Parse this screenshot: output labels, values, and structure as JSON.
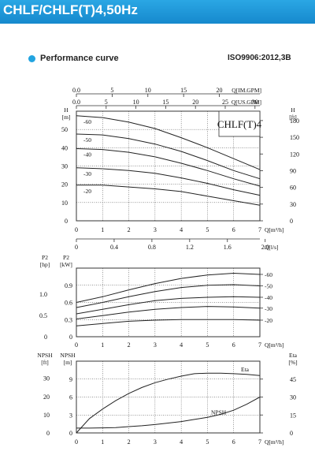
{
  "header": {
    "title": "CHLF/CHLF(T)4,50Hz"
  },
  "section": {
    "title": "Performance curve",
    "standard": "ISO9906:2012,3B"
  },
  "colors": {
    "banner": "#1a92d6",
    "accent_dot": "#22a4e0",
    "curve": "#222222",
    "grid": "#333333"
  },
  "chart_data": [
    {
      "type": "line",
      "id": "head",
      "model_label": "CHLF(T)4",
      "x_axis_bottom": {
        "label": "Q[m³/h]",
        "range": [
          0,
          7
        ],
        "ticks": [
          "0",
          "1",
          "2",
          "3",
          "4",
          "5",
          "6",
          "7"
        ]
      },
      "x_axis_top_1": {
        "label": "Q[IM.GPM]",
        "range": [
          0,
          25.67
        ],
        "ticks": [
          "0.0",
          "5",
          "10",
          "15",
          "20"
        ]
      },
      "x_axis_top_2": {
        "label": "Q[US.GPM]",
        "range": [
          0,
          30.82
        ],
        "ticks": [
          "0.0",
          "5",
          "10",
          "15",
          "20",
          "25",
          "30"
        ]
      },
      "y_axis_left": {
        "label": "H",
        "unit": "[m]",
        "range": [
          0,
          60
        ],
        "ticks": [
          "0",
          "10",
          "20",
          "30",
          "40",
          "50"
        ]
      },
      "y_axis_right": {
        "label": "H",
        "unit": "[ft]",
        "range": [
          0,
          196.85
        ],
        "ticks": [
          "0",
          "30",
          "60",
          "90",
          "120",
          "150",
          "180"
        ]
      },
      "x": [
        0,
        1,
        2,
        3,
        4,
        5,
        6,
        7
      ],
      "series": [
        {
          "name": "-60",
          "values": [
            57.5,
            56.5,
            54,
            50.5,
            45.5,
            40,
            34,
            28
          ]
        },
        {
          "name": "-50",
          "values": [
            47.5,
            47,
            45,
            42,
            38,
            33,
            27.5,
            23
          ]
        },
        {
          "name": "-40",
          "values": [
            39.5,
            39,
            37.5,
            35,
            31.5,
            27.5,
            23,
            19
          ]
        },
        {
          "name": "-30",
          "values": [
            29,
            28.5,
            27.5,
            26,
            23.5,
            20.5,
            17,
            14
          ]
        },
        {
          "name": "-20",
          "values": [
            19.5,
            19.5,
            18.5,
            17.5,
            16,
            13.5,
            11,
            8.5
          ]
        }
      ]
    },
    {
      "type": "line",
      "id": "power",
      "x_axis_top": {
        "label": "Q[l/s]",
        "range": [
          0,
          1.944
        ],
        "ticks": [
          "0",
          "0.4",
          "0.8",
          "1.2",
          "1.6",
          "2.0"
        ]
      },
      "x_axis_bottom": {
        "label": "Q[m³/h]",
        "range": [
          0,
          7
        ],
        "ticks": [
          "0",
          "1",
          "2",
          "3",
          "4",
          "5",
          "6",
          "7"
        ]
      },
      "y_axis_left_hp": {
        "label": "P2",
        "unit": "[hp]",
        "range": [
          0,
          1.61
        ],
        "ticks": [
          "0",
          "0.5",
          "1.0"
        ]
      },
      "y_axis_left_kw": {
        "label": "P2",
        "unit": "[kW]",
        "range": [
          0,
          1.2
        ],
        "ticks": [
          "0",
          "0.3",
          "0.6",
          "0.9"
        ]
      },
      "x": [
        0,
        1,
        2,
        3,
        4,
        5,
        6,
        7
      ],
      "series": [
        {
          "name": "-60",
          "values": [
            0.6,
            0.7,
            0.82,
            0.93,
            1.02,
            1.08,
            1.11,
            1.09
          ]
        },
        {
          "name": "-50",
          "values": [
            0.51,
            0.6,
            0.7,
            0.79,
            0.86,
            0.9,
            0.91,
            0.89
          ]
        },
        {
          "name": "-40",
          "values": [
            0.4,
            0.48,
            0.56,
            0.63,
            0.67,
            0.69,
            0.7,
            0.69
          ]
        },
        {
          "name": "-30",
          "values": [
            0.31,
            0.37,
            0.43,
            0.48,
            0.51,
            0.53,
            0.52,
            0.5
          ]
        },
        {
          "name": "-20",
          "values": [
            0.19,
            0.23,
            0.27,
            0.29,
            0.3,
            0.3,
            0.3,
            0.29
          ]
        }
      ]
    },
    {
      "type": "line",
      "id": "npsh_eta",
      "x_axis_bottom": {
        "label": "Q[m³/h]",
        "range": [
          0,
          7
        ],
        "ticks": [
          "0",
          "1",
          "2",
          "3",
          "4",
          "5",
          "6",
          "7"
        ]
      },
      "y_axis_left_ft": {
        "label": "NPSH",
        "unit": "[ft]",
        "range": [
          0,
          39.37
        ],
        "ticks": [
          "0",
          "10",
          "20",
          "30"
        ]
      },
      "y_axis_left_m": {
        "label": "NPSH",
        "unit": "[m]",
        "range": [
          0,
          12
        ],
        "ticks": [
          "0",
          "3",
          "6",
          "9"
        ]
      },
      "y_axis_right": {
        "label": "Eta",
        "unit": "[%]",
        "range": [
          0,
          60
        ],
        "ticks": [
          "0",
          "15",
          "30",
          "45"
        ]
      },
      "x": [
        0,
        0.5,
        1,
        1.5,
        2,
        2.5,
        3,
        3.5,
        4,
        4.5,
        5,
        5.5,
        6,
        6.5,
        7
      ],
      "series": [
        {
          "name": "Eta",
          "axis": "right",
          "values": [
            0,
            12,
            20,
            27,
            33,
            38,
            42,
            45,
            47.5,
            49.5,
            50,
            50,
            49.5,
            49,
            48
          ]
        },
        {
          "name": "NPSH",
          "axis": "left",
          "values": [
            0.8,
            0.8,
            0.85,
            0.9,
            1.05,
            1.2,
            1.4,
            1.65,
            1.9,
            2.25,
            2.6,
            3.1,
            3.8,
            4.8,
            6.0
          ]
        }
      ]
    }
  ]
}
